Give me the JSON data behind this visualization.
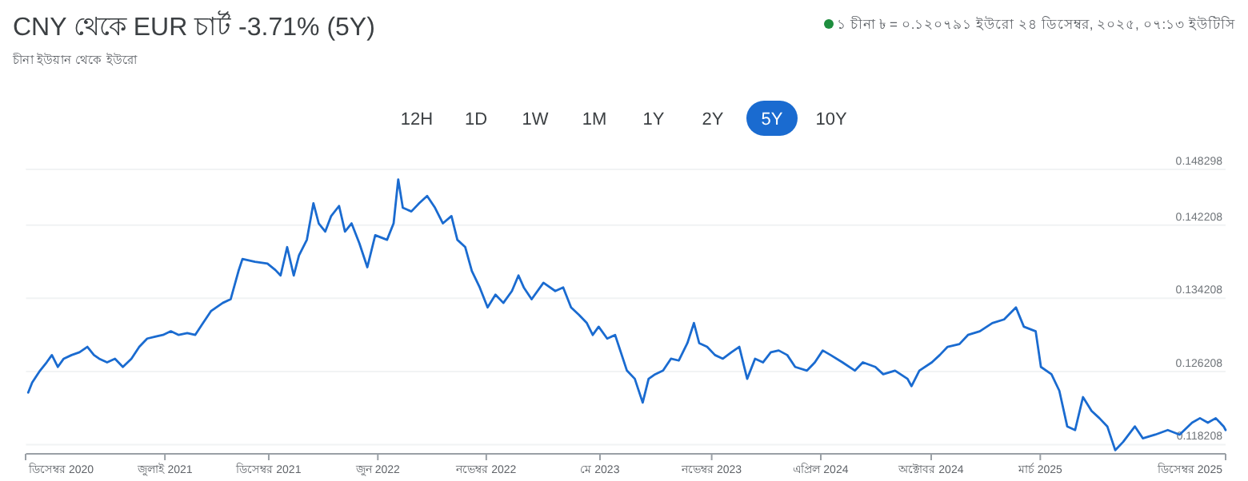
{
  "chart_data": {
    "type": "line",
    "title": "CNY থেকে EUR চার্ট -3.71% (5Y)",
    "subtitle": "চীনা ইউয়ান থেকে ইউরো",
    "annotations": [
      "১ চীনা ৳ = ০.১২০৭৯১ ইউরো ২৪ ডিসেম্বর, ২০২৫, ০৭:১৩ ইউটিসি",
      "12H",
      "1D",
      "1W",
      "1M",
      "1Y",
      "2Y",
      "5Y",
      "10Y"
    ],
    "x": [
      "2020-12-28",
      "2021-01-03",
      "2021-01-15",
      "2021-01-25",
      "2021-02-02",
      "2021-02-11",
      "2021-02-20",
      "2021-03-04",
      "2021-03-16",
      "2021-03-28",
      "2021-04-07",
      "2021-04-15",
      "2021-04-27",
      "2021-05-09",
      "2021-05-21",
      "2021-06-03",
      "2021-06-15",
      "2021-06-27",
      "2021-07-09",
      "2021-07-21",
      "2021-08-02",
      "2021-08-14",
      "2021-08-27",
      "2021-09-08",
      "2021-09-20",
      "2021-10-02",
      "2021-10-20",
      "2021-11-01",
      "2021-11-13",
      "2021-11-19",
      "2021-12-08",
      "2021-12-27",
      "2022-01-08",
      "2022-01-16",
      "2022-01-26",
      "2022-02-05",
      "2022-02-13",
      "2022-02-25",
      "2022-03-07",
      "2022-03-15",
      "2022-03-25",
      "2022-04-03",
      "2022-04-15",
      "2022-04-24",
      "2022-05-04",
      "2022-05-16",
      "2022-05-28",
      "2022-06-09",
      "2022-06-27",
      "2022-07-07",
      "2022-07-14",
      "2022-07-21",
      "2022-08-03",
      "2022-08-15",
      "2022-08-27",
      "2022-09-08",
      "2022-09-20",
      "2022-10-03",
      "2022-10-12",
      "2022-10-24",
      "2022-11-03",
      "2022-11-15",
      "2022-11-27",
      "2022-12-09",
      "2022-12-21",
      "2023-01-03",
      "2023-01-13",
      "2023-01-21",
      "2023-02-02",
      "2023-02-20",
      "2023-03-10",
      "2023-03-22",
      "2023-04-03",
      "2023-04-15",
      "2023-04-27",
      "2023-05-06",
      "2023-05-15",
      "2023-05-28",
      "2023-06-09",
      "2023-06-15",
      "2023-06-27",
      "2023-07-09",
      "2023-07-21",
      "2023-07-30",
      "2023-08-09",
      "2023-08-21",
      "2023-09-02",
      "2023-09-14",
      "2023-09-27",
      "2023-10-07",
      "2023-10-15",
      "2023-10-27",
      "2023-11-08",
      "2023-11-20",
      "2023-12-03",
      "2023-12-15",
      "2023-12-27",
      "2024-01-08",
      "2024-01-20",
      "2024-02-01",
      "2024-02-13",
      "2024-02-26",
      "2024-03-09",
      "2024-03-27",
      "2024-04-08",
      "2024-04-20",
      "2024-05-02",
      "2024-05-20",
      "2024-06-08",
      "2024-06-20",
      "2024-07-09",
      "2024-07-21",
      "2024-08-08",
      "2024-08-27",
      "2024-09-02",
      "2024-09-14",
      "2024-10-03",
      "2024-10-15",
      "2024-10-27",
      "2024-11-14",
      "2024-11-27",
      "2024-12-15",
      "2025-01-03",
      "2025-01-21",
      "2025-02-08",
      "2025-02-20",
      "2025-03-10",
      "2025-03-18",
      "2025-04-03",
      "2025-04-15",
      "2025-04-27",
      "2025-05-09",
      "2025-05-21",
      "2025-06-03",
      "2025-06-15",
      "2025-06-27",
      "2025-07-09",
      "2025-07-21",
      "2025-08-08",
      "2025-08-20",
      "2025-09-08",
      "2025-09-27",
      "2025-10-15",
      "2025-11-03",
      "2025-11-15",
      "2025-11-27",
      "2025-12-09",
      "2025-12-21",
      "2025-12-24"
    ],
    "series": [
      {
        "color": "#1a6bd0",
        "values": [
          0.1239,
          0.125,
          0.1263,
          0.1272,
          0.128,
          0.1267,
          0.1276,
          0.128,
          0.1283,
          0.1289,
          0.128,
          0.1276,
          0.1272,
          0.1276,
          0.1267,
          0.1276,
          0.1289,
          0.1298,
          0.13,
          0.1302,
          0.1306,
          0.1302,
          0.1304,
          0.1302,
          0.1315,
          0.1328,
          0.1337,
          0.1341,
          0.1372,
          0.1385,
          0.1382,
          0.138,
          0.1373,
          0.1367,
          0.1398,
          0.1367,
          0.1389,
          0.1406,
          0.1446,
          0.1424,
          0.1415,
          0.1432,
          0.1443,
          0.1415,
          0.1424,
          0.1402,
          0.1376,
          0.1411,
          0.1406,
          0.1424,
          0.1472,
          0.1441,
          0.1437,
          0.1446,
          0.1454,
          0.1441,
          0.1424,
          0.1432,
          0.1406,
          0.1398,
          0.1372,
          0.1354,
          0.1332,
          0.1346,
          0.1337,
          0.135,
          0.1367,
          0.1354,
          0.1341,
          0.1359,
          0.135,
          0.1354,
          0.1332,
          0.1324,
          0.1315,
          0.1302,
          0.1311,
          0.1298,
          0.1302,
          0.1289,
          0.1263,
          0.1254,
          0.1228,
          0.1254,
          0.1259,
          0.1263,
          0.1276,
          0.1274,
          0.1293,
          0.1315,
          0.1293,
          0.1289,
          0.128,
          0.1276,
          0.1283,
          0.1289,
          0.1254,
          0.1276,
          0.1272,
          0.1283,
          0.1285,
          0.128,
          0.1267,
          0.1263,
          0.1272,
          0.1285,
          0.128,
          0.1272,
          0.1263,
          0.1272,
          0.1267,
          0.1259,
          0.1263,
          0.1254,
          0.1246,
          0.1263,
          0.1272,
          0.128,
          0.1289,
          0.1292,
          0.1302,
          0.1306,
          0.1315,
          0.1319,
          0.1332,
          0.1311,
          0.1306,
          0.1267,
          0.1259,
          0.1241,
          0.1202,
          0.1198,
          0.1234,
          0.1219,
          0.1211,
          0.1202,
          0.1176,
          0.1185,
          0.1202,
          0.1189,
          0.1193,
          0.1198,
          0.1193,
          0.1206,
          0.1211,
          0.1206,
          0.1211,
          0.1202,
          0.1198
        ]
      }
    ],
    "xlim": [
      "2020-12-24",
      "2025-12-24"
    ],
    "xticks": [
      {
        "value": "2020-12-24",
        "label": "ডিসেম্বর 2020"
      },
      {
        "value": "2021-07-24",
        "label": "জুলাই 2021"
      },
      {
        "value": "2021-12-29",
        "label": "ডিসেম্বর 2021"
      },
      {
        "value": "2022-06-13",
        "label": "জুন 2022"
      },
      {
        "value": "2022-11-25",
        "label": "নভেম্বর 2022"
      },
      {
        "value": "2023-05-17",
        "label": "মে 2023"
      },
      {
        "value": "2023-11-03",
        "label": "নভেম্বর 2023"
      },
      {
        "value": "2024-04-17",
        "label": "এপ্রিল 2024"
      },
      {
        "value": "2024-10-02",
        "label": "অক্টোবর 2024"
      },
      {
        "value": "2025-03-17",
        "label": "মার্চ 2025"
      },
      {
        "value": "2025-12-24",
        "label": "ডিসেম্বর 2025"
      }
    ],
    "ylim": [
      0.1172,
      0.148298
    ],
    "yticks": [
      0.118208,
      0.126208,
      0.134208,
      0.142208,
      0.148298
    ],
    "grid": "y",
    "line_style": "solid"
  }
}
